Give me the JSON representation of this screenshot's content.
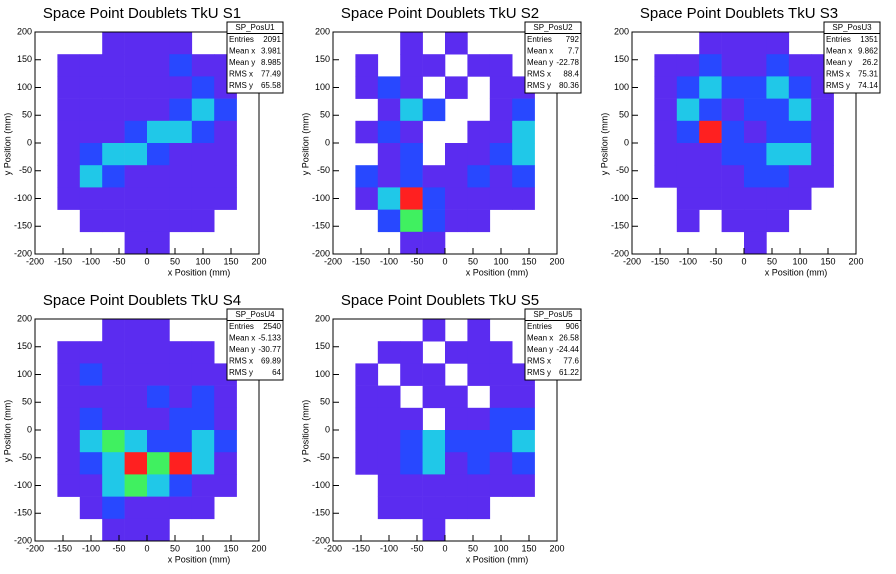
{
  "chart_data": [
    {
      "type": "heatmap",
      "title": "Space Point Doublets TkU S1",
      "xlabel": "x Position (mm)",
      "ylabel": "y Position (mm)",
      "xlim": [
        -200,
        200
      ],
      "ylim": [
        -200,
        200
      ],
      "xticks": [
        -200,
        -150,
        -100,
        -50,
        0,
        50,
        100,
        150,
        200
      ],
      "yticks": [
        -200,
        -150,
        -100,
        -50,
        0,
        50,
        100,
        150,
        200
      ],
      "palette": [
        "#5b2cf0",
        "#2848ff",
        "#20c8e8",
        "#40f060",
        "#ff2020"
      ],
      "stats": {
        "name": "SP_PosU1",
        "rows": [
          {
            "label": "Entries",
            "value": 2091
          },
          {
            "label": "Mean x",
            "value": 3.981
          },
          {
            "label": "Mean y",
            "value": 8.985
          },
          {
            "label": "RMS x",
            "value": 77.49
          },
          {
            "label": "RMS y",
            "value": 65.58
          }
        ]
      },
      "z": [
        [
          0,
          0,
          0,
          1,
          1,
          1,
          1,
          0,
          0,
          0
        ],
        [
          0,
          1,
          1,
          1,
          1,
          1,
          2,
          1,
          1,
          0
        ],
        [
          0,
          1,
          1,
          1,
          1,
          1,
          1,
          2,
          1,
          0
        ],
        [
          0,
          1,
          1,
          1,
          1,
          1,
          2,
          3,
          2,
          0
        ],
        [
          0,
          1,
          1,
          1,
          2,
          3,
          3,
          2,
          1,
          0
        ],
        [
          0,
          1,
          2,
          3,
          3,
          2,
          1,
          1,
          1,
          0
        ],
        [
          0,
          1,
          3,
          2,
          1,
          1,
          1,
          1,
          1,
          0
        ],
        [
          0,
          1,
          1,
          1,
          1,
          1,
          1,
          1,
          1,
          0
        ],
        [
          0,
          0,
          1,
          1,
          1,
          1,
          1,
          1,
          0,
          0
        ],
        [
          0,
          0,
          0,
          0,
          1,
          1,
          0,
          0,
          0,
          0
        ]
      ]
    },
    {
      "type": "heatmap",
      "title": "Space Point Doublets TkU S2",
      "xlabel": "x Position (mm)",
      "ylabel": "y Position (mm)",
      "xlim": [
        -200,
        200
      ],
      "ylim": [
        -200,
        200
      ],
      "xticks": [
        -200,
        -150,
        -100,
        -50,
        0,
        50,
        100,
        150,
        200
      ],
      "yticks": [
        -200,
        -150,
        -100,
        -50,
        0,
        50,
        100,
        150,
        200
      ],
      "palette": [
        "#5b2cf0",
        "#2848ff",
        "#20c8e8",
        "#40f060",
        "#ff2020"
      ],
      "stats": {
        "name": "SP_PosU2",
        "rows": [
          {
            "label": "Entries",
            "value": 792
          },
          {
            "label": "Mean x",
            "value": 7.7
          },
          {
            "label": "Mean y",
            "value": -22.78
          },
          {
            "label": "RMS x",
            "value": 88.4
          },
          {
            "label": "RMS y",
            "value": 80.36
          }
        ]
      },
      "z": [
        [
          0,
          0,
          0,
          1,
          0,
          1,
          0,
          0,
          0,
          0
        ],
        [
          0,
          1,
          0,
          1,
          1,
          0,
          1,
          1,
          0,
          0
        ],
        [
          0,
          1,
          2,
          1,
          0,
          1,
          0,
          1,
          1,
          0
        ],
        [
          0,
          0,
          1,
          3,
          2,
          0,
          0,
          1,
          2,
          0
        ],
        [
          0,
          1,
          2,
          1,
          0,
          0,
          1,
          1,
          3,
          0
        ],
        [
          0,
          0,
          1,
          2,
          0,
          1,
          1,
          2,
          3,
          0
        ],
        [
          0,
          2,
          1,
          2,
          1,
          1,
          2,
          1,
          2,
          0
        ],
        [
          0,
          1,
          3,
          5,
          2,
          1,
          1,
          1,
          1,
          0
        ],
        [
          0,
          0,
          2,
          4,
          2,
          1,
          1,
          0,
          0,
          0
        ],
        [
          0,
          0,
          0,
          1,
          1,
          0,
          0,
          0,
          0,
          0
        ]
      ]
    },
    {
      "type": "heatmap",
      "title": "Space Point Doublets TkU S3",
      "xlabel": "x Position (mm)",
      "ylabel": "y Position (mm)",
      "xlim": [
        -200,
        200
      ],
      "ylim": [
        -200,
        200
      ],
      "xticks": [
        -200,
        -150,
        -100,
        -50,
        0,
        50,
        100,
        150,
        200
      ],
      "yticks": [
        -200,
        -150,
        -100,
        -50,
        0,
        50,
        100,
        150,
        200
      ],
      "palette": [
        "#5b2cf0",
        "#2848ff",
        "#20c8e8",
        "#40f060",
        "#ff2020"
      ],
      "stats": {
        "name": "SP_PosU3",
        "rows": [
          {
            "label": "Entries",
            "value": 1351
          },
          {
            "label": "Mean x",
            "value": 9.862
          },
          {
            "label": "Mean y",
            "value": 26.2
          },
          {
            "label": "RMS x",
            "value": 75.31
          },
          {
            "label": "RMS y",
            "value": 74.14
          }
        ]
      },
      "z": [
        [
          0,
          0,
          0,
          1,
          1,
          1,
          1,
          0,
          0,
          0
        ],
        [
          0,
          1,
          1,
          2,
          1,
          1,
          2,
          1,
          1,
          0
        ],
        [
          0,
          1,
          2,
          3,
          2,
          2,
          3,
          2,
          1,
          0
        ],
        [
          0,
          1,
          3,
          2,
          1,
          2,
          2,
          3,
          1,
          0
        ],
        [
          0,
          1,
          2,
          5,
          2,
          1,
          2,
          2,
          1,
          0
        ],
        [
          0,
          1,
          1,
          1,
          2,
          2,
          3,
          3,
          1,
          0
        ],
        [
          0,
          1,
          1,
          1,
          1,
          2,
          2,
          1,
          1,
          0
        ],
        [
          0,
          0,
          1,
          1,
          1,
          1,
          1,
          1,
          0,
          0
        ],
        [
          0,
          0,
          1,
          0,
          1,
          1,
          1,
          0,
          0,
          0
        ],
        [
          0,
          0,
          0,
          0,
          0,
          1,
          0,
          0,
          0,
          0
        ]
      ]
    },
    {
      "type": "heatmap",
      "title": "Space Point Doublets TkU S4",
      "xlabel": "x Position (mm)",
      "ylabel": "y Position (mm)",
      "xlim": [
        -200,
        200
      ],
      "ylim": [
        -200,
        200
      ],
      "xticks": [
        -200,
        -150,
        -100,
        -50,
        0,
        50,
        100,
        150,
        200
      ],
      "yticks": [
        -200,
        -150,
        -100,
        -50,
        0,
        50,
        100,
        150,
        200
      ],
      "palette": [
        "#5b2cf0",
        "#2848ff",
        "#20c8e8",
        "#40f060",
        "#ff2020"
      ],
      "stats": {
        "name": "SP_PosU4",
        "rows": [
          {
            "label": "Entries",
            "value": 2540
          },
          {
            "label": "Mean x",
            "value": -5.133
          },
          {
            "label": "Mean y",
            "value": -30.77
          },
          {
            "label": "RMS x",
            "value": 69.89
          },
          {
            "label": "RMS y",
            "value": 64
          }
        ]
      },
      "z": [
        [
          0,
          0,
          0,
          1,
          1,
          1,
          0,
          0,
          0,
          0
        ],
        [
          0,
          1,
          1,
          1,
          1,
          1,
          1,
          1,
          0,
          0
        ],
        [
          0,
          1,
          2,
          1,
          1,
          1,
          1,
          1,
          1,
          0
        ],
        [
          0,
          1,
          1,
          1,
          1,
          2,
          1,
          2,
          1,
          0
        ],
        [
          0,
          1,
          2,
          1,
          1,
          1,
          2,
          2,
          1,
          0
        ],
        [
          0,
          1,
          3,
          4,
          3,
          2,
          2,
          3,
          2,
          0
        ],
        [
          0,
          1,
          2,
          3,
          5,
          4,
          5,
          3,
          1,
          0
        ],
        [
          0,
          1,
          1,
          3,
          4,
          3,
          2,
          1,
          1,
          0
        ],
        [
          0,
          0,
          1,
          2,
          1,
          1,
          1,
          1,
          0,
          0
        ],
        [
          0,
          0,
          0,
          1,
          1,
          1,
          0,
          0,
          0,
          0
        ]
      ]
    },
    {
      "type": "heatmap",
      "title": "Space Point Doublets TkU S5",
      "xlabel": "x Position (mm)",
      "ylabel": "y Position (mm)",
      "xlim": [
        -200,
        200
      ],
      "ylim": [
        -200,
        200
      ],
      "xticks": [
        -200,
        -150,
        -100,
        -50,
        0,
        50,
        100,
        150,
        200
      ],
      "yticks": [
        -200,
        -150,
        -100,
        -50,
        0,
        50,
        100,
        150,
        200
      ],
      "palette": [
        "#5b2cf0",
        "#2848ff",
        "#20c8e8",
        "#40f060",
        "#ff2020"
      ],
      "stats": {
        "name": "SP_PosU5",
        "rows": [
          {
            "label": "Entries",
            "value": 906
          },
          {
            "label": "Mean x",
            "value": 26.58
          },
          {
            "label": "Mean y",
            "value": -24.44
          },
          {
            "label": "RMS x",
            "value": 77.6
          },
          {
            "label": "RMS y",
            "value": 61.22
          }
        ]
      },
      "z": [
        [
          0,
          0,
          0,
          0,
          1,
          0,
          1,
          0,
          0,
          0
        ],
        [
          0,
          0,
          1,
          1,
          0,
          1,
          1,
          1,
          0,
          0
        ],
        [
          0,
          1,
          0,
          1,
          1,
          0,
          1,
          1,
          1,
          0
        ],
        [
          0,
          1,
          1,
          0,
          1,
          1,
          0,
          1,
          1,
          0
        ],
        [
          0,
          1,
          1,
          1,
          0,
          1,
          1,
          2,
          2,
          0
        ],
        [
          0,
          1,
          1,
          2,
          3,
          2,
          2,
          2,
          3,
          0
        ],
        [
          0,
          1,
          1,
          2,
          3,
          1,
          2,
          1,
          2,
          0
        ],
        [
          0,
          0,
          1,
          1,
          1,
          1,
          1,
          1,
          1,
          0
        ],
        [
          0,
          0,
          1,
          1,
          1,
          1,
          1,
          0,
          0,
          0
        ],
        [
          0,
          0,
          0,
          0,
          1,
          0,
          0,
          0,
          0,
          0
        ]
      ]
    }
  ]
}
